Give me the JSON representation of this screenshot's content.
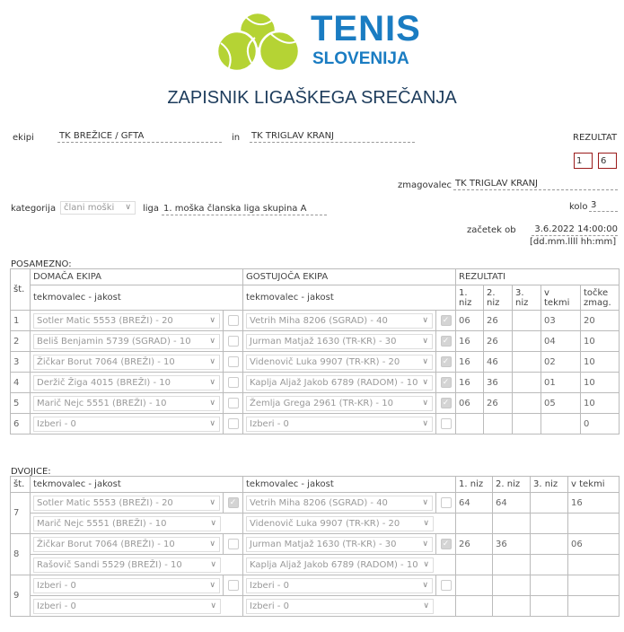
{
  "logo": {
    "line1": "TENIS",
    "line2": "SLOVENIJA",
    "ball_color": "#b5d334",
    "text_color": "#1a7cc2"
  },
  "title": "ZAPISNIK LIGAŠKEGA SREČANJA",
  "header": {
    "ekipi_label": "ekipi",
    "home_team": "TK BREŽICE / GFTA",
    "in_label": "in",
    "away_team": "TK TRIGLAV KRANJ",
    "rezultat_label": "REZULTAT",
    "score_home": "1",
    "score_away": "6",
    "zmagovalec_label": "zmagovalec",
    "zmagovalec": "TK TRIGLAV KRANJ",
    "kategorija_label": "kategorija",
    "kategorija": "člani moški",
    "liga_label": "liga",
    "liga": "1. moška članska liga skupina A",
    "kolo_label": "kolo",
    "kolo": "3",
    "zacetek_label": "začetek ob",
    "zacetek": "3.6.2022 14:00:00",
    "date_format": "[dd.mm.llll hh:mm]"
  },
  "singles": {
    "section_label": "POSAMEZNO:",
    "headers": {
      "st": "št.",
      "home": "DOMAČA EKIPA",
      "away": "GOSTUJOČA EKIPA",
      "results": "REZULTATI",
      "player_home": "tekmovalec - jakost",
      "player_away": "tekmovalec - jakost",
      "set1": "1. niz",
      "set2": "2. niz",
      "set3": "3. niz",
      "match": "v tekmi",
      "points": "točke zmag."
    },
    "rows": [
      {
        "no": "1",
        "home": "Sotler Matic 5553 (BREŽI) - 20",
        "home_cb": false,
        "away": "Vetrih Miha 8206 (SGRAD) - 40",
        "away_cb": true,
        "s1": "06",
        "s2": "26",
        "s3": "",
        "match": "03",
        "points": "20"
      },
      {
        "no": "2",
        "home": "Beliš Benjamin 5739 (SGRAD) - 10",
        "home_cb": false,
        "away": "Jurman Matjaž 1630 (TR-KR) - 30",
        "away_cb": true,
        "s1": "16",
        "s2": "26",
        "s3": "",
        "match": "04",
        "points": "10"
      },
      {
        "no": "3",
        "home": "Žičkar Borut 7064 (BREŽI) - 10",
        "home_cb": false,
        "away": "Videnovič Luka 9907 (TR-KR) - 20",
        "away_cb": true,
        "s1": "16",
        "s2": "46",
        "s3": "",
        "match": "02",
        "points": "10"
      },
      {
        "no": "4",
        "home": "Deržič Žiga 4015 (BREŽI) - 10",
        "home_cb": false,
        "away": "Kaplja Aljaž Jakob 6789 (RADOM) - 10",
        "away_cb": true,
        "s1": "16",
        "s2": "36",
        "s3": "",
        "match": "01",
        "points": "10"
      },
      {
        "no": "5",
        "home": "Marič Nejc 5551 (BREŽI) - 10",
        "home_cb": false,
        "away": "Žemlja Grega 2961 (TR-KR) - 10",
        "away_cb": true,
        "s1": "06",
        "s2": "26",
        "s3": "",
        "match": "05",
        "points": "10"
      },
      {
        "no": "6",
        "home": "Izberi - 0",
        "home_cb": false,
        "away": "Izberi - 0",
        "away_cb": false,
        "s1": "",
        "s2": "",
        "s3": "",
        "match": "",
        "points": "0"
      }
    ]
  },
  "doubles": {
    "section_label": "DVOJICE:",
    "headers": {
      "st": "št.",
      "player_home": "tekmovalec - jakost",
      "player_away": "tekmovalec - jakost",
      "set1": "1. niz",
      "set2": "2. niz",
      "set3": "3. niz",
      "match": "v tekmi"
    },
    "rows": [
      {
        "no": "7",
        "home1": "Sotler Matic 5553 (BREŽI) - 20",
        "home2": "Marič Nejc 5551 (BREŽI) - 10",
        "home_cb": true,
        "away1": "Vetrih Miha 8206 (SGRAD) - 40",
        "away2": "Videnovič Luka 9907 (TR-KR) - 20",
        "away_cb": false,
        "s1": "64",
        "s2": "64",
        "s3": "",
        "match": "16"
      },
      {
        "no": "8",
        "home1": "Žičkar Borut 7064 (BREŽI) - 10",
        "home2": "Rašovič Sandi 5529 (BREŽI) - 10",
        "home_cb": false,
        "away1": "Jurman Matjaž 1630 (TR-KR) - 30",
        "away2": "Kaplja Aljaž Jakob 6789 (RADOM) - 10",
        "away_cb": true,
        "s1": "26",
        "s2": "36",
        "s3": "",
        "match": "06"
      },
      {
        "no": "9",
        "home1": "Izberi - 0",
        "home2": "Izberi - 0",
        "home_cb": false,
        "away1": "Izberi - 0",
        "away2": "Izberi - 0",
        "away_cb": false,
        "s1": "",
        "s2": "",
        "s3": "",
        "match": ""
      }
    ]
  }
}
